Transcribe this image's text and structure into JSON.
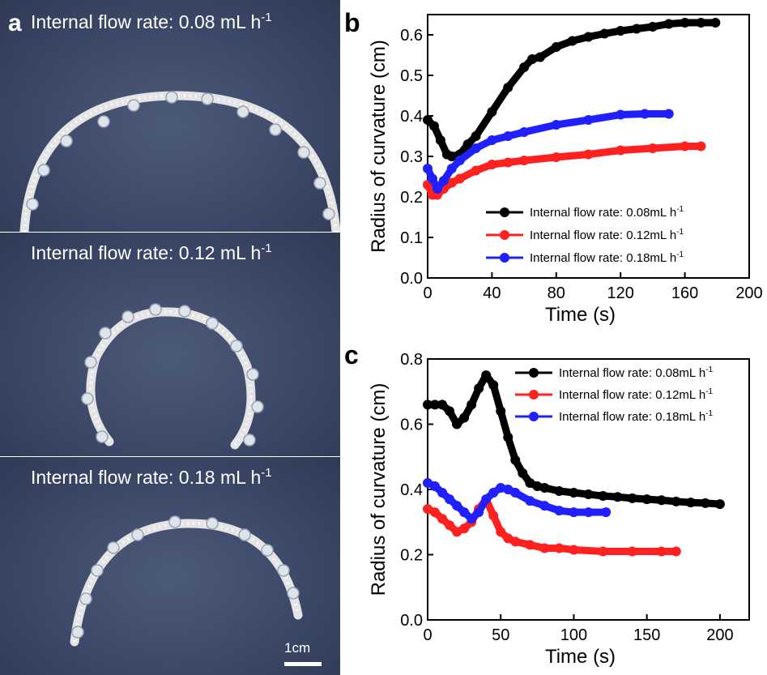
{
  "panel_a": {
    "letter": "a",
    "captions": [
      {
        "text": "Internal flow rate: 0.08 mL h",
        "sup": "-1"
      },
      {
        "text": "Internal flow rate: 0.12 mL h",
        "sup": "-1"
      },
      {
        "text": "Internal flow rate: 0.18 mL h",
        "sup": "-1"
      }
    ],
    "scale_bar_label": "1cm"
  },
  "chart_data": [
    {
      "panel": "b",
      "type": "line",
      "xlabel": "Time (s)",
      "ylabel": "Radius of curvature (cm)",
      "xlim": [
        0,
        200
      ],
      "ylim": [
        0,
        0.65
      ],
      "xticks": [
        0,
        40,
        80,
        120,
        160,
        200
      ],
      "yticks": [
        0.0,
        0.1,
        0.2,
        0.3,
        0.4,
        0.5,
        0.6
      ],
      "grid": false,
      "legend_position": "lower-right",
      "series": [
        {
          "name": "Internal flow rate: 0.08mL h",
          "name_sup": "-1",
          "color": "#000000",
          "x": [
            0,
            4,
            8,
            12,
            15,
            20,
            25,
            30,
            40,
            50,
            60,
            65,
            70,
            80,
            90,
            100,
            110,
            120,
            130,
            140,
            150,
            160,
            170,
            179
          ],
          "y": [
            0.39,
            0.375,
            0.34,
            0.305,
            0.3,
            0.305,
            0.33,
            0.35,
            0.41,
            0.47,
            0.52,
            0.54,
            0.545,
            0.57,
            0.585,
            0.595,
            0.603,
            0.61,
            0.615,
            0.62,
            0.627,
            0.63,
            0.63,
            0.63
          ]
        },
        {
          "name": "Internal flow rate: 0.12mL h",
          "name_sup": "-1",
          "color": "#ff2020",
          "x": [
            0,
            3,
            6,
            10,
            15,
            20,
            30,
            40,
            50,
            60,
            80,
            100,
            120,
            140,
            160,
            170
          ],
          "y": [
            0.23,
            0.205,
            0.205,
            0.22,
            0.235,
            0.245,
            0.265,
            0.28,
            0.285,
            0.29,
            0.298,
            0.305,
            0.315,
            0.32,
            0.325,
            0.325
          ]
        },
        {
          "name": "Internal flow rate: 0.18mL h",
          "name_sup": "-1",
          "color": "#2020ff",
          "x": [
            0,
            3,
            6,
            10,
            15,
            20,
            30,
            40,
            50,
            60,
            80,
            100,
            120,
            135,
            150
          ],
          "y": [
            0.27,
            0.245,
            0.22,
            0.24,
            0.27,
            0.29,
            0.32,
            0.34,
            0.35,
            0.36,
            0.378,
            0.39,
            0.403,
            0.405,
            0.405
          ]
        }
      ]
    },
    {
      "panel": "c",
      "type": "line",
      "xlabel": "Time (s)",
      "ylabel": "Radius of curvature (cm)",
      "xlim": [
        0,
        220
      ],
      "ylim": [
        0,
        0.8
      ],
      "xticks": [
        0,
        50,
        100,
        150,
        200
      ],
      "yticks": [
        0.0,
        0.2,
        0.4,
        0.6,
        0.8
      ],
      "grid": false,
      "legend_position": "top-right",
      "series": [
        {
          "name": "Internal flow rate: 0.08mL h",
          "name_sup": "-1",
          "color": "#000000",
          "x": [
            0,
            5,
            10,
            15,
            20,
            25,
            30,
            35,
            40,
            45,
            50,
            55,
            60,
            65,
            70,
            75,
            80,
            90,
            100,
            110,
            120,
            130,
            140,
            150,
            160,
            170,
            180,
            190,
            200
          ],
          "y": [
            0.66,
            0.66,
            0.66,
            0.64,
            0.6,
            0.62,
            0.66,
            0.71,
            0.75,
            0.72,
            0.64,
            0.56,
            0.49,
            0.45,
            0.42,
            0.41,
            0.405,
            0.395,
            0.39,
            0.385,
            0.38,
            0.377,
            0.373,
            0.37,
            0.367,
            0.363,
            0.36,
            0.358,
            0.355
          ]
        },
        {
          "name": "Internal flow rate: 0.12mL h",
          "name_sup": "-1",
          "color": "#ff2020",
          "x": [
            0,
            5,
            10,
            15,
            20,
            25,
            30,
            35,
            40,
            45,
            50,
            55,
            60,
            70,
            80,
            90,
            100,
            120,
            140,
            160,
            170
          ],
          "y": [
            0.34,
            0.33,
            0.31,
            0.29,
            0.27,
            0.28,
            0.3,
            0.34,
            0.37,
            0.32,
            0.27,
            0.25,
            0.24,
            0.23,
            0.22,
            0.22,
            0.215,
            0.21,
            0.21,
            0.21,
            0.21
          ]
        },
        {
          "name": "Internal flow rate: 0.18mL h",
          "name_sup": "-1",
          "color": "#2020ff",
          "x": [
            0,
            5,
            10,
            15,
            20,
            25,
            30,
            35,
            40,
            45,
            50,
            55,
            60,
            70,
            80,
            90,
            100,
            110,
            122
          ],
          "y": [
            0.42,
            0.41,
            0.39,
            0.37,
            0.35,
            0.33,
            0.31,
            0.33,
            0.37,
            0.39,
            0.405,
            0.4,
            0.39,
            0.365,
            0.35,
            0.335,
            0.33,
            0.33,
            0.33
          ]
        }
      ]
    }
  ]
}
